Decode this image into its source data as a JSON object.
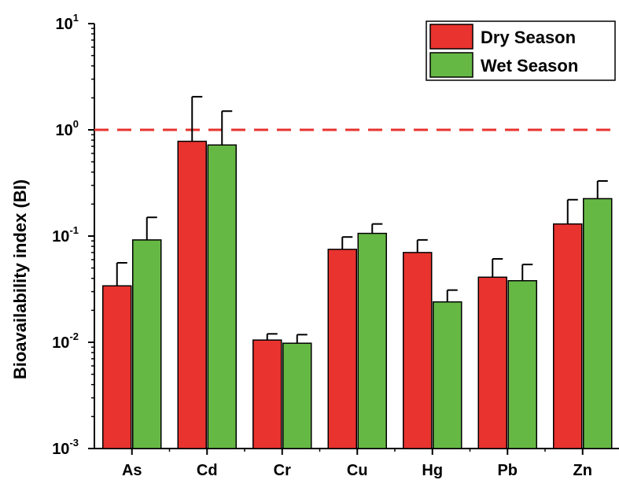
{
  "chart_data": {
    "type": "bar",
    "yscale": "log",
    "ylim": [
      0.001,
      10
    ],
    "ylabel": "Bioavailability index (BI)",
    "xlabel": "",
    "yticks": [
      {
        "value": 10,
        "base": "10",
        "exp": "1"
      },
      {
        "value": 1,
        "base": "10",
        "exp": "0"
      },
      {
        "value": 0.1,
        "base": "10",
        "exp": "-1"
      },
      {
        "value": 0.01,
        "base": "10",
        "exp": "-2"
      },
      {
        "value": 0.001,
        "base": "10",
        "exp": "-3"
      }
    ],
    "categories": [
      "As",
      "Cd",
      "Cr",
      "Cu",
      "Hg",
      "Pb",
      "Zn"
    ],
    "series": [
      {
        "name": "Dry Season",
        "color": "#e8332e",
        "values": [
          0.034,
          0.78,
          0.0105,
          0.075,
          0.07,
          0.041,
          0.13
        ],
        "error_upper": [
          0.056,
          2.05,
          0.012,
          0.098,
          0.092,
          0.061,
          0.22
        ]
      },
      {
        "name": "Wet Season",
        "color": "#66b845",
        "values": [
          0.092,
          0.72,
          0.0098,
          0.106,
          0.024,
          0.038,
          0.225
        ],
        "error_upper": [
          0.15,
          1.5,
          0.0118,
          0.13,
          0.031,
          0.054,
          0.33
        ]
      }
    ],
    "reference_line": {
      "value": 1,
      "color": "#e8332e",
      "style": "dashed"
    },
    "legend": {
      "placement": "top-right"
    },
    "grid": false
  }
}
